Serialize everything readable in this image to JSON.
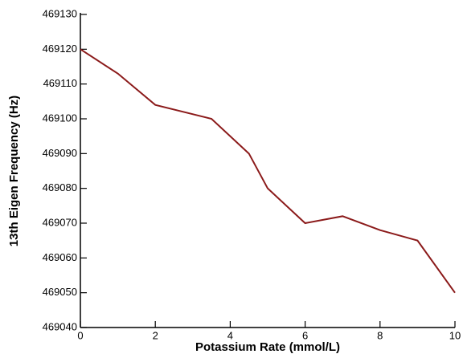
{
  "chart_data": {
    "type": "line",
    "x_label": "Potassium Rate (mmol/L)",
    "y_label": "13th Eigen  Frequency (Hz)",
    "x": [
      0,
      1,
      2,
      3.5,
      4.5,
      5,
      6,
      7,
      8,
      9,
      10
    ],
    "series": [
      {
        "color": "#8b1a1a",
        "values": [
          469120,
          469113,
          469104,
          469100,
          469090,
          469080,
          469070,
          469072,
          469068,
          469065,
          469050
        ]
      }
    ],
    "xlim": [
      0,
      10
    ],
    "xticks": [
      0,
      2,
      4,
      6,
      8,
      10
    ],
    "ylim": [
      469040,
      469130
    ],
    "yticks": [
      469040,
      469050,
      469060,
      469070,
      469080,
      469090,
      469100,
      469110,
      469120,
      469130
    ]
  }
}
